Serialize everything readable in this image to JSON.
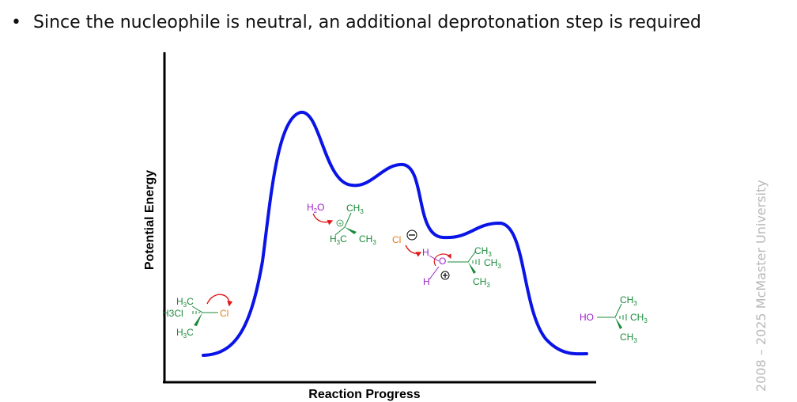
{
  "bullet": {
    "marker": "•",
    "text": "Since the nucleophile is neutral, an additional deprotonation step is required"
  },
  "diagram": {
    "y_axis_label": "Potential Energy",
    "x_axis_label": "Reaction Progress"
  },
  "labels": {
    "h3c": "H3C",
    "h3": "H3",
    "h": "H",
    "ch3": "CH3",
    "c": "C",
    "cl": "Cl",
    "o": "O",
    "ho": "HO",
    "sub2": "2",
    "sub3": "3",
    "h2o_h": "H",
    "h2o_o": "O"
  },
  "copyright": "2008 – 2025 McMaster University",
  "colors": {
    "curve": "#0a14e6",
    "carbon_group": "#1a8a3a",
    "oxygen": "#9a22c8",
    "chlorine": "#e87a12",
    "arrow": "#e01818"
  }
}
